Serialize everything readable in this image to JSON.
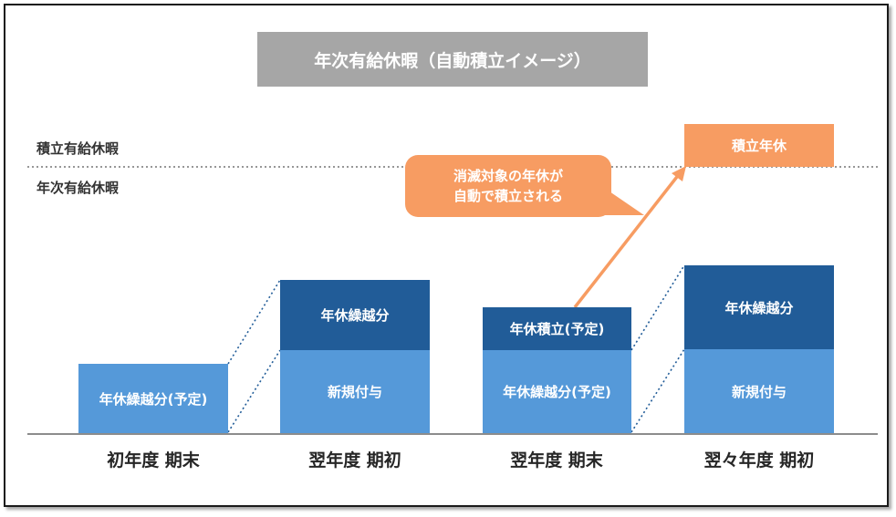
{
  "title": "年次有給休暇（自動積立イメージ）",
  "side_labels": {
    "accumulated": "積立有給休暇",
    "annual": "年次有給休暇"
  },
  "callout": {
    "line1": "消滅対象の年休が",
    "line2": "自動で積立される"
  },
  "stages": [
    {
      "label": "初年度 期末",
      "blocks": [
        "年休繰越分(予定)"
      ]
    },
    {
      "label": "翌年度 期初",
      "blocks": [
        "新規付与",
        "年休繰越分"
      ]
    },
    {
      "label": "翌年度 期末",
      "blocks": [
        "年休繰越分(予定)",
        "年休積立(予定)"
      ]
    },
    {
      "label": "翌々年度 期初",
      "blocks": [
        "新規付与",
        "年休繰越分",
        "積立年休"
      ]
    }
  ],
  "colors": {
    "light_blue": "#5599d9",
    "dark_blue": "#215c98",
    "orange": "#f79c62",
    "title_gray": "#a6a6a6"
  }
}
